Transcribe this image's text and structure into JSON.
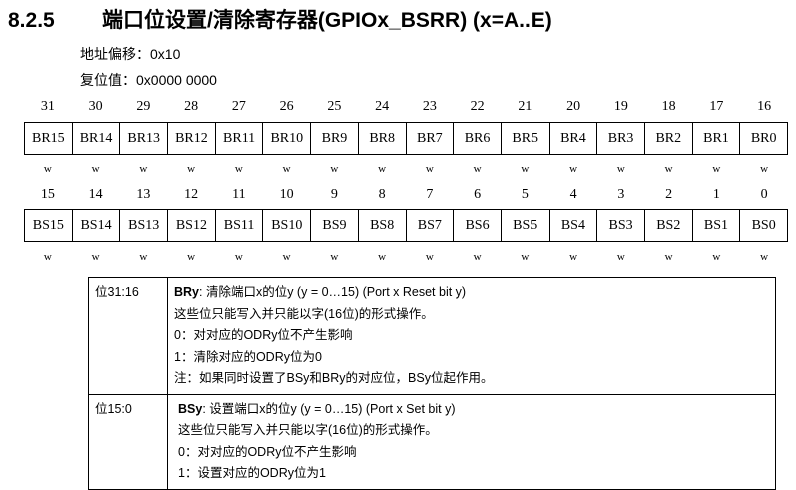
{
  "title": {
    "number": "8.2.5",
    "text": "端口位设置/清除寄存器(GPIOx_BSRR) (x=A..E)"
  },
  "offset": "地址偏移：0x10",
  "reset": "复位值：0x0000  0000",
  "upper": {
    "bit_numbers": [
      "31",
      "30",
      "29",
      "28",
      "27",
      "26",
      "25",
      "24",
      "23",
      "22",
      "21",
      "20",
      "19",
      "18",
      "17",
      "16"
    ],
    "fields": [
      "BR15",
      "BR14",
      "BR13",
      "BR12",
      "BR11",
      "BR10",
      "BR9",
      "BR8",
      "BR7",
      "BR6",
      "BR5",
      "BR4",
      "BR3",
      "BR2",
      "BR1",
      "BR0"
    ],
    "access": [
      "w",
      "w",
      "w",
      "w",
      "w",
      "w",
      "w",
      "w",
      "w",
      "w",
      "w",
      "w",
      "w",
      "w",
      "w",
      "w"
    ]
  },
  "lower": {
    "bit_numbers": [
      "15",
      "14",
      "13",
      "12",
      "11",
      "10",
      "9",
      "8",
      "7",
      "6",
      "5",
      "4",
      "3",
      "2",
      "1",
      "0"
    ],
    "fields": [
      "BS15",
      "BS14",
      "BS13",
      "BS12",
      "BS11",
      "BS10",
      "BS9",
      "BS8",
      "BS7",
      "BS6",
      "BS5",
      "BS4",
      "BS3",
      "BS2",
      "BS1",
      "BS0"
    ],
    "access": [
      "w",
      "w",
      "w",
      "w",
      "w",
      "w",
      "w",
      "w",
      "w",
      "w",
      "w",
      "w",
      "w",
      "w",
      "w",
      "w"
    ]
  },
  "descriptions": [
    {
      "bits": "位31:16",
      "name": "BRy",
      "heading": ": 清除端口x的位y (y = 0…15) (Port x Reset bit y)",
      "lines": [
        "这些位只能写入并只能以字(16位)的形式操作。",
        "0：对对应的ODRy位不产生影响",
        "1：清除对应的ODRy位为0",
        "注：如果同时设置了BSy和BRy的对应位，BSy位起作用。"
      ]
    },
    {
      "bits": "位15:0",
      "name": "BSy",
      "heading": ": 设置端口x的位y (y = 0…15) (Port x Set bit y)",
      "lines": [
        "这些位只能写入并只能以字(16位)的形式操作。",
        "0：对对应的ODRy位不产生影响",
        "1：设置对应的ODRy位为1"
      ]
    }
  ]
}
